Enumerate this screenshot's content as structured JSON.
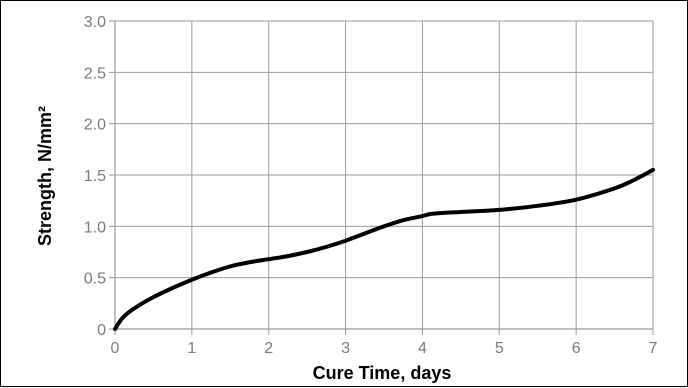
{
  "chart_data": {
    "type": "line",
    "title": "",
    "xlabel": "Cure Time, days",
    "ylabel": "Strength, N/mm²",
    "xlim": [
      0,
      7
    ],
    "ylim": [
      0,
      3.0
    ],
    "x_ticks": [
      "0",
      "1",
      "2",
      "3",
      "4",
      "5",
      "6",
      "7"
    ],
    "y_ticks": [
      "0",
      "0.5",
      "1.0",
      "1.5",
      "2.0",
      "2.5",
      "3.0"
    ],
    "grid": true,
    "legend": "none",
    "colors": {
      "line": "#000000",
      "grid": "#9a9a9a",
      "tick_text": "#7a7a7a"
    },
    "series": [
      {
        "x": [
          0,
          0.1,
          0.25,
          0.5,
          0.75,
          1.0,
          1.25,
          1.5,
          1.75,
          2.0,
          2.25,
          2.5,
          2.75,
          3.0,
          3.25,
          3.5,
          3.75,
          4.0,
          4.1,
          4.25,
          4.5,
          5.0,
          5.5,
          6.0,
          6.5,
          6.75,
          7.0
        ],
        "y": [
          0,
          0.11,
          0.2,
          0.31,
          0.4,
          0.48,
          0.55,
          0.61,
          0.65,
          0.68,
          0.71,
          0.75,
          0.8,
          0.86,
          0.93,
          1.0,
          1.06,
          1.1,
          1.12,
          1.13,
          1.14,
          1.16,
          1.2,
          1.26,
          1.37,
          1.45,
          1.55
        ]
      }
    ]
  }
}
